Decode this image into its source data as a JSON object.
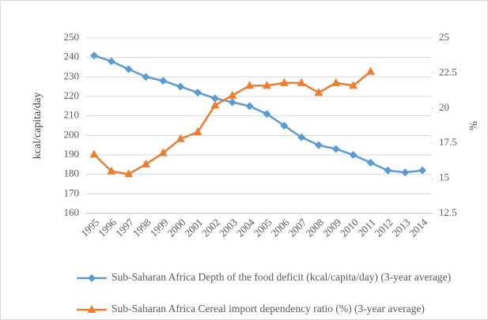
{
  "chart_data": {
    "type": "line",
    "y_label": "kcal/capita/day",
    "y2_label": "%",
    "categories": [
      "1995",
      "1996",
      "1997",
      "1998",
      "1999",
      "2000",
      "2001",
      "2002",
      "2003",
      "2004",
      "2005",
      "2006",
      "2007",
      "2008",
      "2009",
      "2010",
      "2011",
      "2012",
      "2013",
      "2014"
    ],
    "series": [
      {
        "name": "Sub-Saharan Africa Depth of the food deficit (kcal/capita/day) (3-year average)",
        "color": "#5b9bd5",
        "marker": "diamond",
        "values": [
          241,
          238,
          234,
          230,
          228,
          225,
          222,
          219,
          217,
          215,
          211,
          205,
          199,
          195,
          193,
          190,
          186,
          182,
          181,
          182
        ]
      },
      {
        "name": "Sub-Saharan Africa Cereal import dependency ratio (%) (3-year average)",
        "color": "#ed7d31",
        "marker": "triangle",
        "axis": "y2",
        "values": [
          16.7,
          15.5,
          15.3,
          16.0,
          16.8,
          17.8,
          18.3,
          20.2,
          20.9,
          21.6,
          21.6,
          21.8,
          21.8,
          21.1,
          21.8,
          21.6,
          22.6,
          null,
          null,
          null
        ]
      }
    ],
    "ylim": [
      160,
      250
    ],
    "yticks": [
      160,
      170,
      180,
      190,
      200,
      210,
      220,
      230,
      240,
      250
    ],
    "y2lim": [
      12.5,
      25
    ],
    "y2ticks": [
      12.5,
      15,
      17.5,
      20,
      22.5,
      25
    ],
    "grid": true,
    "legend": "bottom"
  }
}
